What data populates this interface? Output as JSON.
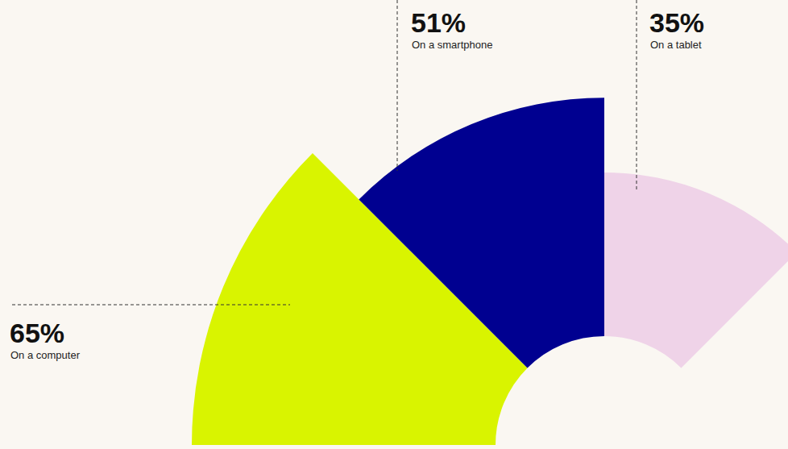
{
  "chart_data": {
    "type": "radial_bar",
    "categories": [
      "On a computer",
      "On a smartphone",
      "On a tablet"
    ],
    "values": [
      65,
      51,
      35
    ],
    "value_labels": [
      "65%",
      "51%",
      "35%"
    ],
    "colors": [
      "#d9f400",
      "#000090",
      "#efd3e8"
    ],
    "data_labels": true
  }
}
